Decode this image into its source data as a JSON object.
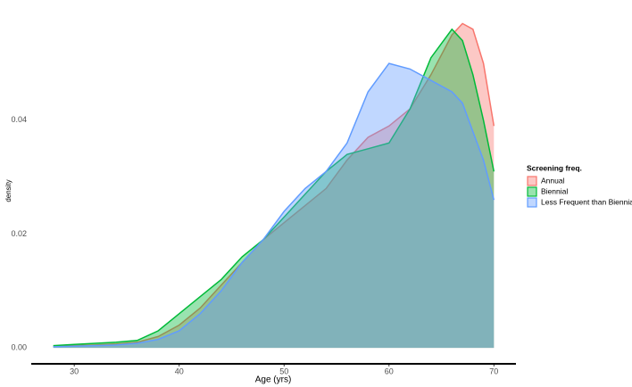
{
  "chart_data": {
    "type": "density",
    "x_label": "Age (yrs)",
    "y_label": "density",
    "legend_title": "Screening freq.",
    "legend_position": "right",
    "x": [
      28,
      30,
      32,
      34,
      36,
      38,
      40,
      42,
      44,
      46,
      48,
      50,
      52,
      54,
      56,
      58,
      60,
      62,
      64,
      66,
      67,
      68,
      69,
      70
    ],
    "series": [
      {
        "name": "Annual",
        "color": "#F8766D",
        "values": [
          0.0003,
          0.0004,
          0.0005,
          0.0007,
          0.001,
          0.002,
          0.004,
          0.007,
          0.011,
          0.015,
          0.019,
          0.022,
          0.025,
          0.028,
          0.033,
          0.037,
          0.039,
          0.042,
          0.048,
          0.055,
          0.057,
          0.056,
          0.05,
          0.039
        ]
      },
      {
        "name": "Biennial",
        "color": "#00BA38",
        "values": [
          0.0004,
          0.0006,
          0.0008,
          0.001,
          0.0013,
          0.003,
          0.006,
          0.009,
          0.012,
          0.016,
          0.019,
          0.023,
          0.027,
          0.031,
          0.034,
          0.035,
          0.036,
          0.042,
          0.051,
          0.056,
          0.054,
          0.048,
          0.04,
          0.031
        ]
      },
      {
        "name": "Less Frequent than Biennial",
        "color": "#619CFF",
        "values": [
          0.0002,
          0.0003,
          0.0004,
          0.0005,
          0.0008,
          0.0015,
          0.003,
          0.006,
          0.01,
          0.015,
          0.019,
          0.024,
          0.028,
          0.031,
          0.036,
          0.045,
          0.05,
          0.049,
          0.047,
          0.045,
          0.043,
          0.038,
          0.033,
          0.026
        ]
      }
    ],
    "xlim": [
      25.9,
      72.1
    ],
    "xticks": [
      30,
      40,
      50,
      60,
      70
    ],
    "ylim": [
      -0.0028,
      0.058
    ],
    "yticks": [
      {
        "value": 0,
        "label": "0.00"
      },
      0.02,
      0.04
    ],
    "grid": false
  }
}
